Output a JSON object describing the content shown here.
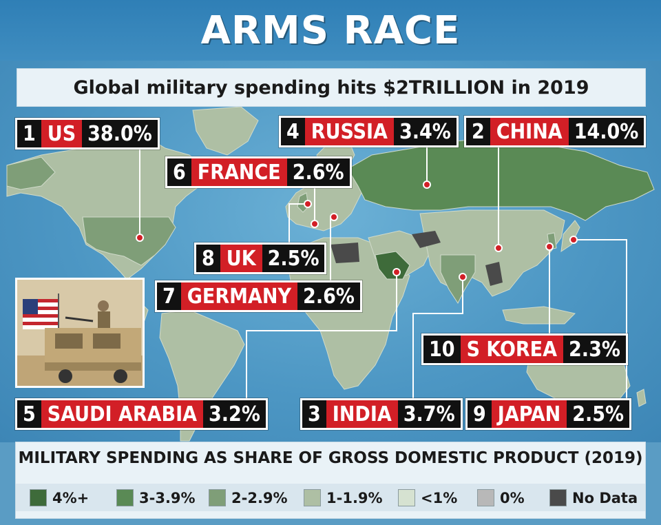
{
  "title": "ARMS RACE",
  "subtitle": "Global military spending hits $2TRILLION in 2019",
  "countries": [
    {
      "rank": "1",
      "name": "US",
      "pct": "38.0%"
    },
    {
      "rank": "4",
      "name": "RUSSIA",
      "pct": "3.4%"
    },
    {
      "rank": "2",
      "name": "CHINA",
      "pct": "14.0%"
    },
    {
      "rank": "6",
      "name": "FRANCE",
      "pct": "2.6%"
    },
    {
      "rank": "8",
      "name": "UK",
      "pct": "2.5%"
    },
    {
      "rank": "7",
      "name": "GERMANY",
      "pct": "2.6%"
    },
    {
      "rank": "10",
      "name": "S KOREA",
      "pct": "2.3%"
    },
    {
      "rank": "5",
      "name": "SAUDI ARABIA",
      "pct": "3.2%"
    },
    {
      "rank": "3",
      "name": "INDIA",
      "pct": "3.7%"
    },
    {
      "rank": "9",
      "name": "JAPAN",
      "pct": "2.5%"
    }
  ],
  "legend": {
    "title": "MILITARY SPENDING AS SHARE OF GROSS DOMESTIC PRODUCT (2019)",
    "items": [
      {
        "label": "4%+",
        "color": "#3e6b3a"
      },
      {
        "label": "3-3.9%",
        "color": "#5a8a55"
      },
      {
        "label": "2-2.9%",
        "color": "#7f9e78"
      },
      {
        "label": "1-1.9%",
        "color": "#aebfa4"
      },
      {
        "label": "<1%",
        "color": "#d6e2d1"
      },
      {
        "label": "0%",
        "color": "#b8b8b8"
      },
      {
        "label": "No Data",
        "color": "#4a4a4a"
      }
    ]
  },
  "colors": {
    "ocean": "#4d97c4",
    "accent_red": "#d21f26",
    "label_black": "#111111"
  },
  "photo": {
    "icon": "soldier-vehicle-flag-photo"
  }
}
